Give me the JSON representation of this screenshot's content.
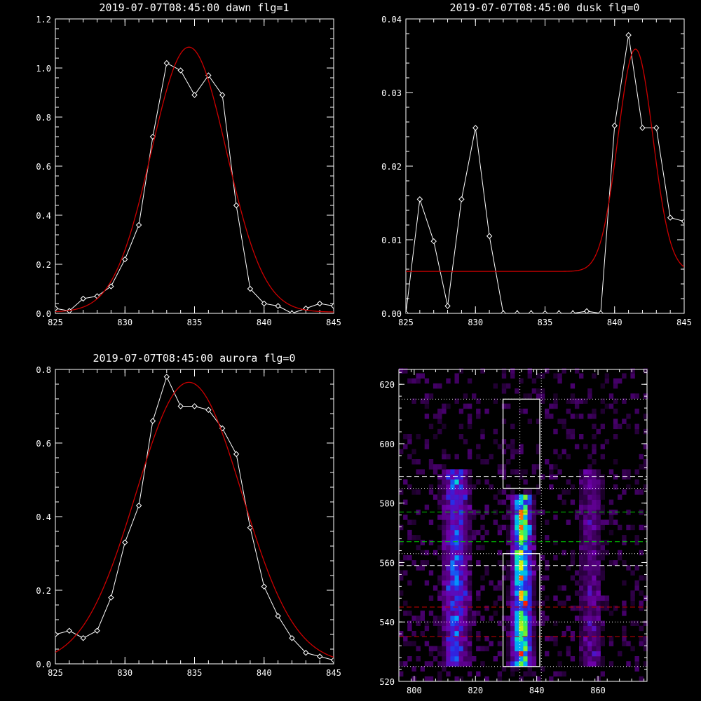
{
  "chart_data": [
    {
      "id": "dawn",
      "type": "line",
      "title": "2019-07-07T08:45:00 dawn flg=1",
      "xlim": [
        825,
        845
      ],
      "ylim": [
        0,
        1.2
      ],
      "xticks": [
        825,
        830,
        835,
        840,
        845
      ],
      "xtick_labels": [
        "825",
        "830",
        "835",
        "840",
        "845"
      ],
      "yticks": [
        0,
        0.2,
        0.4,
        0.6,
        0.8,
        1.0,
        1.2
      ],
      "ytick_labels": [
        "0.0",
        "0.2",
        "0.4",
        "0.6",
        "0.8",
        "1.0",
        "1.2"
      ],
      "series": [
        {
          "style": "observed",
          "color": "#ffffff",
          "x": [
            825,
            826,
            827,
            828,
            829,
            830,
            831,
            832,
            833,
            834,
            835,
            836,
            837,
            838,
            839,
            840,
            841,
            842,
            843,
            844,
            845
          ],
          "y": [
            0.02,
            0.01,
            0.06,
            0.07,
            0.11,
            0.22,
            0.36,
            0.72,
            1.02,
            0.99,
            0.89,
            0.97,
            0.89,
            0.44,
            0.1,
            0.04,
            0.03,
            0.0,
            0.02,
            0.04,
            0.03
          ],
          "marker": "diamond"
        },
        {
          "style": "fit",
          "color": "#cc0000",
          "fit": {
            "amp": 1.08,
            "center": 834.6,
            "sigma": 2.7,
            "offset": 0.005
          }
        }
      ]
    },
    {
      "id": "dusk",
      "type": "line",
      "title": "2019-07-07T08:45:00 dusk flg=0",
      "xlim": [
        825,
        845
      ],
      "ylim": [
        0,
        0.04
      ],
      "xticks": [
        825,
        830,
        835,
        840,
        845
      ],
      "xtick_labels": [
        "825",
        "830",
        "835",
        "840",
        "845"
      ],
      "yticks": [
        0,
        0.01,
        0.02,
        0.03,
        0.04
      ],
      "ytick_labels": [
        "0.00",
        "0.01",
        "0.02",
        "0.03",
        "0.04"
      ],
      "series": [
        {
          "style": "observed",
          "color": "#ffffff",
          "x": [
            825,
            826,
            827,
            828,
            829,
            830,
            831,
            832,
            833,
            834,
            835,
            836,
            837,
            838,
            839,
            840,
            841,
            842,
            843,
            844,
            845
          ],
          "y": [
            0.0,
            0.0155,
            0.0098,
            0.001,
            0.0155,
            0.0252,
            0.0105,
            0.0,
            0.0,
            0.0,
            0.0,
            0.0,
            0.0,
            0.0003,
            0.0,
            0.0255,
            0.0378,
            0.0252,
            0.0252,
            0.013,
            0.0125
          ],
          "marker": "diamond"
        },
        {
          "style": "fit",
          "color": "#cc0000",
          "fit": {
            "amp": 0.0302,
            "center": 841.5,
            "sigma": 1.25,
            "offset": 0.0057
          }
        }
      ]
    },
    {
      "id": "aurora",
      "type": "line",
      "title": "2019-07-07T08:45:00 aurora flg=0",
      "xlim": [
        825,
        845
      ],
      "ylim": [
        0,
        0.8
      ],
      "xticks": [
        825,
        830,
        835,
        840,
        845
      ],
      "xtick_labels": [
        "825",
        "830",
        "835",
        "840",
        "845"
      ],
      "yticks": [
        0,
        0.2,
        0.4,
        0.6,
        0.8
      ],
      "ytick_labels": [
        "0.0",
        "0.2",
        "0.4",
        "0.6",
        "0.8"
      ],
      "series": [
        {
          "style": "observed",
          "color": "#ffffff",
          "x": [
            825,
            826,
            827,
            828,
            829,
            830,
            831,
            832,
            833,
            834,
            835,
            836,
            837,
            838,
            839,
            840,
            841,
            842,
            843,
            844,
            845
          ],
          "y": [
            0.08,
            0.09,
            0.07,
            0.09,
            0.18,
            0.33,
            0.43,
            0.66,
            0.78,
            0.7,
            0.7,
            0.69,
            0.64,
            0.57,
            0.37,
            0.21,
            0.13,
            0.07,
            0.03,
            0.02,
            0.01
          ],
          "marker": "diamond"
        },
        {
          "style": "fit",
          "color": "#cc0000",
          "fit": {
            "amp": 0.765,
            "center": 834.6,
            "sigma": 3.8,
            "offset": 0.0
          }
        }
      ]
    },
    {
      "id": "image",
      "type": "heatmap",
      "title": "",
      "xlim": [
        795,
        876
      ],
      "ylim": [
        520,
        625
      ],
      "xticks": [
        800,
        820,
        840,
        860
      ],
      "xtick_labels": [
        "800",
        "820",
        "840",
        "860"
      ],
      "yticks": [
        520,
        540,
        560,
        580,
        600,
        620
      ],
      "ytick_labels": [
        "520",
        "540",
        "560",
        "580",
        "600",
        "620"
      ],
      "emission_bands": [
        {
          "center": 813,
          "width": 2.6,
          "y_range": [
            525,
            590
          ],
          "strength": 0.55
        },
        {
          "center": 834.5,
          "width": 2.0,
          "y_range": [
            525,
            582
          ],
          "strength": 1.0
        },
        {
          "center": 857,
          "width": 2.5,
          "y_range": [
            525,
            590
          ],
          "strength": 0.25
        }
      ],
      "boxes": [
        {
          "x": [
            829,
            841
          ],
          "y": [
            585,
            615
          ],
          "color": "#ffffff"
        },
        {
          "x": [
            829,
            841
          ],
          "y": [
            525,
            563
          ],
          "color": "#ffffff"
        }
      ],
      "vlines": [
        {
          "x": 834.5,
          "style": "dotted",
          "color": "#ffffff"
        },
        {
          "x": 841.5,
          "style": "dotted",
          "color": "#ffffff"
        }
      ],
      "hlines": [
        {
          "y": 615,
          "style": "dotted",
          "color": "#ffffff"
        },
        {
          "y": 589,
          "style": "dashed",
          "color": "#ffffff"
        },
        {
          "y": 585,
          "style": "dotted",
          "color": "#ffffff"
        },
        {
          "y": 577,
          "style": "dashed",
          "color": "#00cc00"
        },
        {
          "y": 567,
          "style": "dashed",
          "color": "#00cc00"
        },
        {
          "y": 563,
          "style": "dotted",
          "color": "#ffffff"
        },
        {
          "y": 559,
          "style": "dashed",
          "color": "#ffffff"
        },
        {
          "y": 545,
          "style": "dashed",
          "color": "#cc0000"
        },
        {
          "y": 540,
          "style": "dotted",
          "color": "#ffffff"
        },
        {
          "y": 535,
          "style": "dashed",
          "color": "#cc0000"
        },
        {
          "y": 525,
          "style": "dotted",
          "color": "#ffffff"
        }
      ]
    }
  ]
}
